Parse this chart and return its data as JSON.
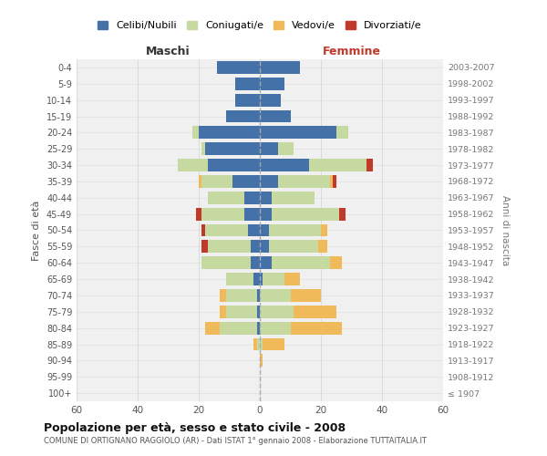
{
  "age_groups": [
    "100+",
    "95-99",
    "90-94",
    "85-89",
    "80-84",
    "75-79",
    "70-74",
    "65-69",
    "60-64",
    "55-59",
    "50-54",
    "45-49",
    "40-44",
    "35-39",
    "30-34",
    "25-29",
    "20-24",
    "15-19",
    "10-14",
    "5-9",
    "0-4"
  ],
  "birth_years": [
    "≤ 1907",
    "1908-1912",
    "1913-1917",
    "1918-1922",
    "1923-1927",
    "1928-1932",
    "1933-1937",
    "1938-1942",
    "1943-1947",
    "1948-1952",
    "1953-1957",
    "1958-1962",
    "1963-1967",
    "1968-1972",
    "1973-1977",
    "1978-1982",
    "1983-1987",
    "1988-1992",
    "1993-1997",
    "1998-2002",
    "2003-2007"
  ],
  "maschi": {
    "celibi": [
      0,
      0,
      0,
      0,
      1,
      1,
      1,
      2,
      3,
      3,
      4,
      5,
      5,
      9,
      17,
      18,
      20,
      11,
      8,
      8,
      14
    ],
    "coniugati": [
      0,
      0,
      0,
      1,
      12,
      10,
      10,
      9,
      16,
      14,
      14,
      14,
      12,
      10,
      10,
      1,
      2,
      0,
      0,
      0,
      0
    ],
    "vedovi": [
      0,
      0,
      0,
      1,
      5,
      2,
      2,
      0,
      0,
      0,
      0,
      0,
      0,
      1,
      0,
      0,
      0,
      0,
      0,
      0,
      0
    ],
    "divorziati": [
      0,
      0,
      0,
      0,
      0,
      0,
      0,
      0,
      0,
      2,
      1,
      2,
      0,
      0,
      0,
      0,
      0,
      0,
      0,
      0,
      0
    ]
  },
  "femmine": {
    "nubili": [
      0,
      0,
      0,
      0,
      0,
      0,
      0,
      1,
      4,
      3,
      3,
      4,
      4,
      6,
      16,
      6,
      25,
      10,
      7,
      8,
      13
    ],
    "coniugate": [
      0,
      0,
      0,
      1,
      10,
      11,
      10,
      7,
      19,
      16,
      17,
      22,
      14,
      17,
      19,
      5,
      4,
      0,
      0,
      0,
      0
    ],
    "vedove": [
      0,
      0,
      1,
      7,
      17,
      14,
      10,
      5,
      4,
      3,
      2,
      0,
      0,
      1,
      0,
      0,
      0,
      0,
      0,
      0,
      0
    ],
    "divorziate": [
      0,
      0,
      0,
      0,
      0,
      0,
      0,
      0,
      0,
      0,
      0,
      2,
      0,
      1,
      2,
      0,
      0,
      0,
      0,
      0,
      0
    ]
  },
  "colors": {
    "celibi": "#4472a8",
    "coniugati": "#c5d9a0",
    "vedovi": "#f0b95a",
    "divorziati": "#c0392b"
  },
  "title": "Popolazione per età, sesso e stato civile - 2008",
  "subtitle": "COMUNE DI ORTIGNANO RAGGIOLO (AR) - Dati ISTAT 1° gennaio 2008 - Elaborazione TUTTAITALIA.IT",
  "xlabel_maschi": "Maschi",
  "xlabel_femmine": "Femmine",
  "ylabel": "Fasce di età",
  "ylabel2": "Anni di nascita",
  "xlim": 60,
  "legend_labels": [
    "Celibi/Nubili",
    "Coniugati/e",
    "Vedovi/e",
    "Divorziati/e"
  ],
  "bg_color": "#ffffff",
  "plot_bg": "#f0f0f0",
  "grid_color": "#cccccc"
}
